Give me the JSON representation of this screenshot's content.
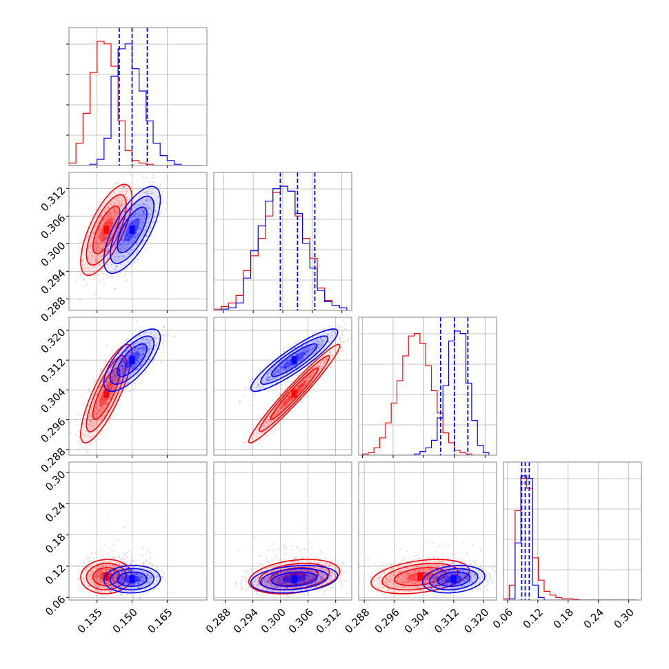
{
  "chart_data": {
    "type": "scatter",
    "kind": "corner-plot",
    "grid": true,
    "colors": {
      "series_a": "#ff0000",
      "series_b": "#0000ff",
      "grid": "#b0b0b0",
      "frame": "#808080"
    },
    "series": [
      {
        "color": "#ff0000",
        "center": [
          0.139,
          0.303,
          0.303,
          0.1
        ],
        "sd": [
          0.005,
          0.0045,
          0.006,
          0.015
        ]
      },
      {
        "color": "#0000ff",
        "center": [
          0.15,
          0.303,
          0.312,
          0.095
        ],
        "sd": [
          0.0055,
          0.0043,
          0.0038,
          0.012
        ]
      }
    ],
    "quantile_lines": [
      [
        0.1445,
        0.15,
        0.1565
      ],
      [
        0.2995,
        0.303,
        0.3065
      ],
      [
        0.3084,
        0.312,
        0.3155
      ],
      [
        0.088,
        0.095,
        0.103
      ]
    ],
    "histograms": [
      {
        "xlim": [
          0.123,
          0.182
        ],
        "edges": [
          0.123,
          0.126,
          0.129,
          0.132,
          0.135,
          0.138,
          0.141,
          0.144,
          0.147,
          0.15,
          0.153,
          0.156,
          0.159,
          0.162,
          0.165,
          0.168,
          0.171,
          0.174,
          0.177,
          0.18
        ],
        "red": [
          0.02,
          0.18,
          0.42,
          0.75,
          1.0,
          0.98,
          0.8,
          0.36,
          0.12,
          0.04,
          0.02,
          0.01,
          0,
          0,
          0,
          0,
          0,
          0,
          0
        ],
        "blue": [
          0,
          0,
          0,
          0.01,
          0.05,
          0.22,
          0.72,
          0.94,
          0.98,
          0.78,
          0.6,
          0.36,
          0.18,
          0.08,
          0.04,
          0.01,
          0,
          0,
          0
        ]
      },
      {
        "xlim": [
          0.286,
          0.314
        ],
        "edges": [
          0.286,
          0.2875,
          0.289,
          0.2905,
          0.292,
          0.2935,
          0.295,
          0.2965,
          0.298,
          0.2995,
          0.301,
          0.3025,
          0.304,
          0.3055,
          0.307,
          0.3085,
          0.31,
          0.3115,
          0.313
        ],
        "red": [
          0.01,
          0.03,
          0.06,
          0.12,
          0.32,
          0.44,
          0.58,
          0.76,
          0.95,
          1.0,
          0.96,
          0.76,
          0.58,
          0.42,
          0.18,
          0.08,
          0.04,
          0.02
        ],
        "blue": [
          0,
          0.01,
          0.02,
          0.06,
          0.26,
          0.48,
          0.68,
          0.88,
          0.98,
          1.0,
          0.96,
          0.78,
          0.54,
          0.34,
          0.16,
          0.07,
          0.04,
          0.02
        ]
      },
      {
        "xlim": [
          0.287,
          0.323
        ],
        "edges": [
          0.288,
          0.2895,
          0.291,
          0.2925,
          0.294,
          0.2955,
          0.297,
          0.2985,
          0.3,
          0.3015,
          0.303,
          0.3045,
          0.306,
          0.3075,
          0.309,
          0.3105,
          0.312,
          0.3135,
          0.315,
          0.3165,
          0.318,
          0.3195,
          0.321
        ],
        "red": [
          0.01,
          0.02,
          0.06,
          0.14,
          0.26,
          0.42,
          0.6,
          0.8,
          0.96,
          0.98,
          0.9,
          0.72,
          0.52,
          0.34,
          0.18,
          0.1,
          0.04,
          0.02,
          0.01,
          0,
          0,
          0
        ],
        "blue": [
          0,
          0,
          0,
          0,
          0,
          0,
          0,
          0,
          0,
          0.01,
          0.03,
          0.06,
          0.12,
          0.3,
          0.56,
          0.92,
          1.0,
          0.98,
          0.58,
          0.28,
          0.08,
          0.02
        ]
      },
      {
        "xlim": [
          0.052,
          0.325
        ],
        "edges": [
          0.052,
          0.0635,
          0.075,
          0.0865,
          0.098,
          0.1095,
          0.121,
          0.1325,
          0.144,
          0.1555,
          0.167,
          0.1785,
          0.19,
          0.2015,
          0.213,
          0.2245,
          0.236,
          0.2475,
          0.259,
          0.2705,
          0.282,
          0.2935,
          0.305,
          0.3165
        ],
        "red": [
          0.01,
          0.12,
          0.72,
          0.98,
          0.9,
          0.34,
          0.16,
          0.07,
          0.04,
          0.02,
          0.01,
          0.01,
          0.005,
          0,
          0,
          0,
          0,
          0,
          0,
          0,
          0,
          0,
          0
        ],
        "blue": [
          0,
          0.01,
          0.46,
          1.0,
          0.98,
          0.12,
          0.02,
          0,
          0,
          0,
          0,
          0,
          0,
          0,
          0,
          0,
          0,
          0,
          0,
          0,
          0,
          0,
          0
        ]
      }
    ],
    "axis_ranges": [
      [
        0.123,
        0.182
      ],
      [
        0.2855,
        0.3155
      ],
      [
        0.2865,
        0.3235
      ],
      [
        0.055,
        0.32
      ]
    ],
    "axis_ticks": [
      [
        "0.135",
        "0.150",
        "0.165"
      ],
      [
        "0.288",
        "0.294",
        "0.300",
        "0.306",
        "0.312"
      ],
      [
        "0.288",
        "0.296",
        "0.304",
        "0.312",
        "0.320"
      ],
      [
        "0.06",
        "0.12",
        "0.18",
        "0.24",
        "0.30"
      ]
    ],
    "y_tick_count_hist": 5
  }
}
